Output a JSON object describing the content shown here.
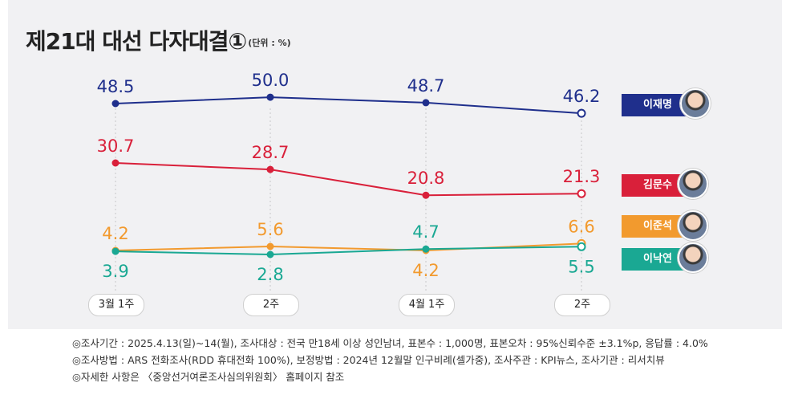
{
  "title": "제21대 대선 다자대결①",
  "unit": "(단위 : %)",
  "chart_data": {
    "type": "line",
    "title": "제21대 대선 다자대결①",
    "unit": "(단위 : %)",
    "categories": [
      "3월 1주",
      "2주",
      "4월 1주",
      "2주"
    ],
    "grid": false,
    "legend_position": "right",
    "series": [
      {
        "name": "이재명",
        "color": "#1f2f8c",
        "values": [
          48.5,
          50.0,
          48.7,
          46.2
        ],
        "labels": [
          "48.5",
          "50.0",
          "48.7",
          "46.2"
        ]
      },
      {
        "name": "김문수",
        "color": "#d9203a",
        "values": [
          30.7,
          28.7,
          20.8,
          21.3
        ],
        "labels": [
          "30.7",
          "28.7",
          "20.8",
          "21.3"
        ]
      },
      {
        "name": "이준석",
        "color": "#f29a2e",
        "values": [
          4.2,
          5.6,
          4.2,
          6.6
        ],
        "labels": [
          "4.2",
          "5.6",
          "4.2",
          "6.6"
        ]
      },
      {
        "name": "이낙연",
        "color": "#1aa893",
        "values": [
          3.9,
          2.8,
          4.7,
          5.5
        ],
        "labels": [
          "3.9",
          "2.8",
          "4.7",
          "5.5"
        ]
      }
    ]
  },
  "footnotes": [
    "◎조사기간 : 2025.4.13(일)~14(월), 조사대상 : 전국 만18세 이상 성인남녀, 표본수 : 1,000명, 표본오차 : 95%신뢰수준 ±3.1%p, 응답률 : 4.0%",
    "◎조사방법 : ARS 전화조사(RDD 휴대전화 100%), 보정방법 : 2024년 12월말 인구비례(셀가중), 조사주관 : KPI뉴스, 조사기관 : 리서치뷰",
    "◎자세한 사항은 〈중앙선거여론조사심의위원회〉 홈페이지 참조"
  ]
}
